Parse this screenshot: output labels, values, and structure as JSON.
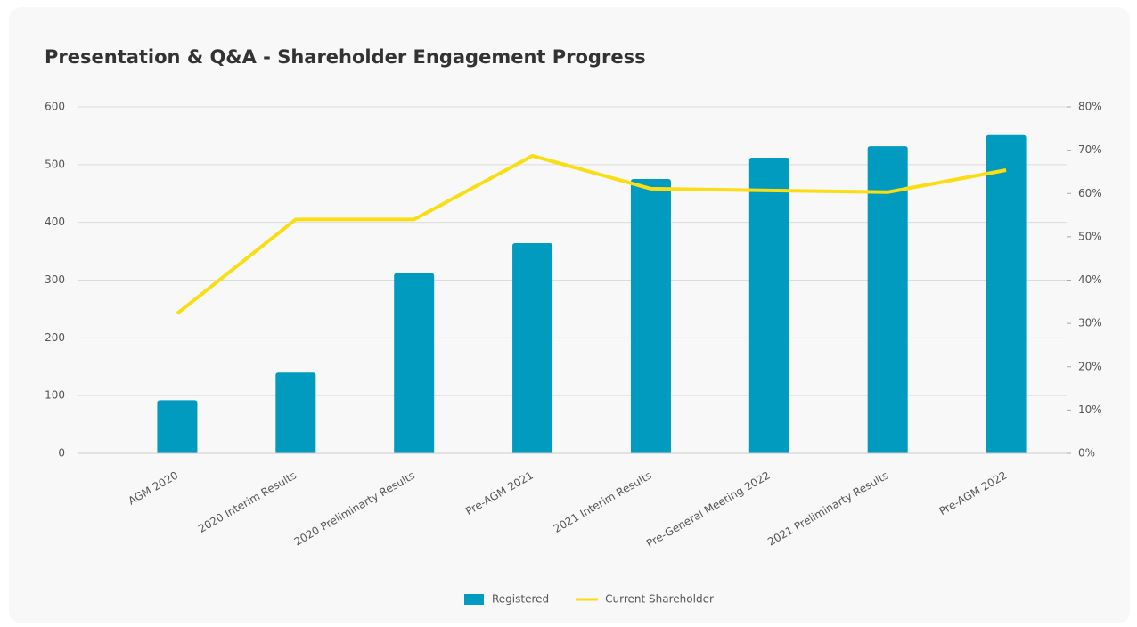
{
  "chart_data": {
    "type": "bar_line",
    "title": "Presentation & Q&A - Shareholder Engagement Progress",
    "categories": [
      "AGM 2020",
      "2020 Interim Results",
      "2020 Preliminarty Results",
      "Pre-AGM 2021",
      "2021 Interim Results",
      "Pre-General Meeting 2022",
      "2021 Preliminarty Results",
      "Pre-AGM 2022"
    ],
    "series": [
      {
        "name": "Registered",
        "type": "bar",
        "color": "#009bbf",
        "values": [
          92,
          140,
          312,
          364,
          475,
          512,
          532,
          551
        ]
      },
      {
        "name": "Current Shareholder",
        "type": "line",
        "axis": "y2",
        "color": "#fbdd14",
        "values": [
          32.3,
          54,
          54,
          68.7,
          61.1,
          60.7,
          60.3,
          65.4
        ]
      }
    ],
    "ylim": [
      0,
      600
    ],
    "yticks": [
      0,
      100,
      200,
      300,
      400,
      500,
      600
    ],
    "y2lim": [
      0,
      80
    ],
    "y2ticks": [
      {
        "value": 0,
        "label": "0%"
      },
      {
        "value": 10,
        "label": "10%"
      },
      {
        "value": 20,
        "label": "20%"
      },
      {
        "value": 30,
        "label": "30%"
      },
      {
        "value": 40,
        "label": "40%"
      },
      {
        "value": 50,
        "label": "50%"
      },
      {
        "value": 60,
        "label": "60%"
      },
      {
        "value": 70,
        "label": "70%"
      },
      {
        "value": 80,
        "label": "80%"
      }
    ],
    "grid": true,
    "legend": "bottom"
  }
}
